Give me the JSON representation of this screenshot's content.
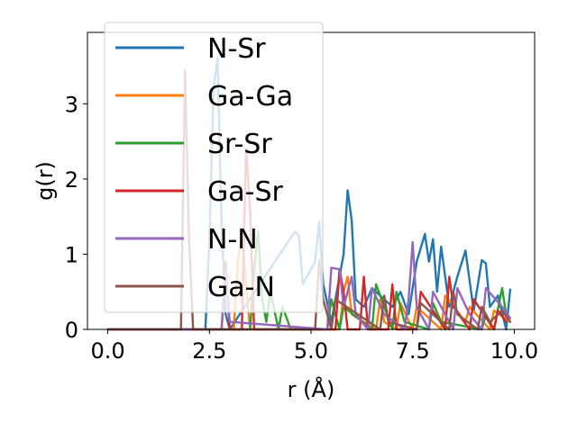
{
  "chart_data": {
    "type": "line",
    "xlabel": "r (Å)",
    "ylabel": "g(r)",
    "xlim": [
      -0.5,
      10.5
    ],
    "ylim": [
      0,
      3.95
    ],
    "xticks": [
      "0.0",
      "2.5",
      "5.0",
      "7.5",
      "10.0"
    ],
    "yticks": [
      "0",
      "1",
      "2",
      "3"
    ],
    "grid": false,
    "legend_position": "upper-left",
    "series": [
      {
        "name": "N-Sr",
        "color": "#1f77b4",
        "x": [
          0.0,
          2.4,
          2.5,
          2.6,
          2.7,
          2.8,
          2.9,
          3.0,
          4.6,
          4.7,
          4.8,
          5.1,
          5.2,
          5.3,
          5.5,
          5.8,
          5.9,
          6.0,
          6.1,
          6.3,
          6.5,
          7.0,
          7.2,
          7.4,
          7.6,
          7.8,
          7.9,
          8.0,
          8.1,
          8.2,
          8.4,
          8.6,
          8.8,
          9.0,
          9.2,
          9.3,
          9.4,
          9.6,
          9.8,
          9.9
        ],
        "y": [
          0.0,
          0.0,
          1.2,
          3.2,
          3.6,
          1.4,
          0.2,
          0.0,
          1.3,
          1.25,
          0.6,
          0.9,
          1.43,
          0.6,
          0.1,
          1.0,
          1.85,
          1.45,
          0.4,
          0.3,
          0.55,
          0.3,
          0.5,
          0.2,
          0.9,
          1.27,
          0.9,
          1.2,
          0.5,
          1.1,
          0.3,
          0.7,
          1.05,
          0.25,
          0.92,
          0.88,
          0.3,
          0.45,
          0.0,
          0.53
        ]
      },
      {
        "name": "Ga-Ga",
        "color": "#ff7f0e",
        "x": [
          0.0,
          3.1,
          3.2,
          3.3,
          3.4,
          3.5,
          5.7,
          5.8,
          5.9,
          6.0,
          6.6,
          6.7,
          6.8,
          7.1,
          7.2,
          7.5,
          7.6,
          8.2,
          8.3,
          8.8,
          8.9,
          9.4,
          9.5,
          9.9
        ],
        "y": [
          0.0,
          0.0,
          0.9,
          1.3,
          0.6,
          0.0,
          0.0,
          0.5,
          0.7,
          0.2,
          0.0,
          0.4,
          0.1,
          0.0,
          0.35,
          0.0,
          0.3,
          0.0,
          0.45,
          0.1,
          0.3,
          0.0,
          0.25,
          0.1
        ]
      },
      {
        "name": "Sr-Sr",
        "color": "#2ca02c",
        "x": [
          0.0,
          3.5,
          3.6,
          3.7,
          3.8,
          3.9,
          4.0,
          4.2,
          4.3,
          4.5,
          5.4,
          5.5,
          5.7,
          5.8,
          6.5,
          6.6,
          6.8,
          7.0,
          7.1,
          7.3,
          7.9,
          8.0,
          8.2,
          9.2,
          9.3,
          9.5,
          9.7,
          9.8
        ],
        "y": [
          0.0,
          0.0,
          0.8,
          1.3,
          0.4,
          0.1,
          0.5,
          0.0,
          0.3,
          0.0,
          0.0,
          0.4,
          0.0,
          0.3,
          0.0,
          0.6,
          0.3,
          0.0,
          0.5,
          0.1,
          0.0,
          0.35,
          0.1,
          0.0,
          0.2,
          0.0,
          0.55,
          0.2
        ]
      },
      {
        "name": "Ga-Sr",
        "color": "#d62728",
        "x": [
          0.0,
          2.8,
          2.9,
          3.0,
          3.3,
          3.4,
          3.5,
          3.6,
          5.6,
          5.7,
          5.8,
          5.9,
          6.2,
          6.3,
          6.4,
          6.9,
          7.0,
          7.1,
          7.6,
          7.7,
          8.3,
          8.4,
          8.5,
          8.9,
          9.0,
          9.5,
          9.6,
          9.8
        ],
        "y": [
          0.0,
          0.0,
          0.9,
          0.0,
          0.0,
          2.4,
          1.6,
          0.0,
          0.0,
          0.8,
          0.5,
          0.0,
          0.0,
          0.7,
          0.0,
          0.0,
          0.6,
          0.0,
          0.0,
          0.5,
          0.0,
          0.7,
          0.3,
          0.0,
          0.4,
          0.0,
          0.25,
          0.1
        ]
      },
      {
        "name": "N-N",
        "color": "#9467bd",
        "x": [
          0.0,
          2.8,
          2.9,
          3.0,
          5.4,
          5.5,
          5.7,
          5.8,
          6.0,
          6.1,
          6.4,
          6.5,
          6.8,
          7.3,
          7.4,
          7.5,
          7.6,
          7.9,
          8.0,
          8.5,
          8.6,
          8.9,
          9.2,
          9.3,
          9.7,
          9.9
        ],
        "y": [
          0.0,
          0.0,
          0.8,
          0.1,
          0.0,
          0.82,
          0.8,
          0.3,
          0.7,
          0.2,
          0.0,
          0.55,
          0.2,
          0.0,
          0.4,
          1.16,
          0.3,
          0.0,
          0.5,
          0.0,
          0.55,
          0.2,
          0.0,
          0.55,
          0.3,
          0.15
        ]
      },
      {
        "name": "Ga-N",
        "color": "#8c564b",
        "x": [
          0.0,
          1.8,
          1.9,
          2.0,
          2.1,
          5.1,
          5.2,
          5.3,
          5.5,
          5.6,
          6.7,
          6.8,
          6.9,
          7.6,
          7.7,
          8.4,
          8.5,
          8.6,
          9.1,
          9.2,
          9.4,
          9.7,
          9.9
        ],
        "y": [
          0.0,
          0.0,
          3.45,
          1.2,
          0.0,
          0.0,
          0.92,
          0.4,
          0.0,
          0.4,
          0.0,
          0.45,
          0.1,
          0.0,
          0.35,
          0.0,
          0.5,
          0.2,
          0.0,
          0.3,
          0.1,
          0.25,
          0.1
        ]
      }
    ]
  }
}
